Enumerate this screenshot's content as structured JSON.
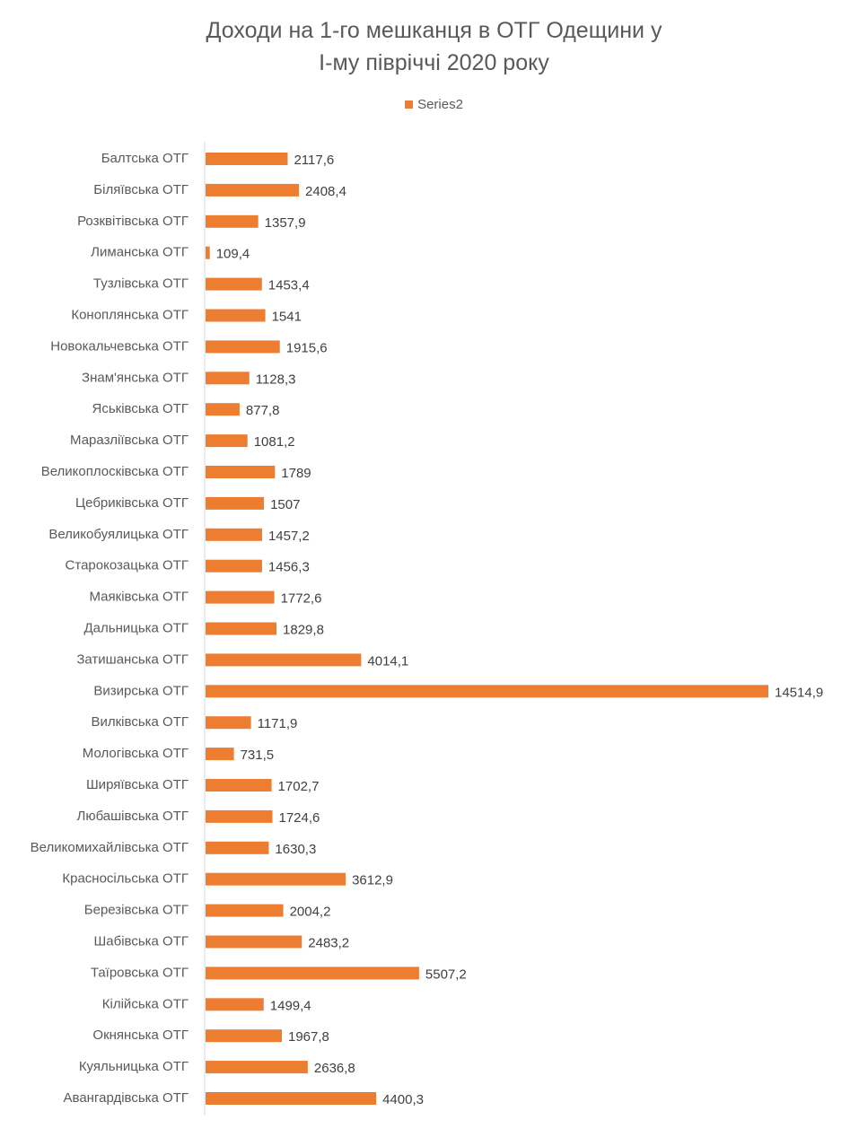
{
  "chart_data": {
    "type": "bar",
    "orientation": "horizontal",
    "title": "Доходи на 1-го мешканця в ОТГ Одещини у І-му півріччі 2020 року",
    "title_lines": [
      "Доходи на 1-го мешканця в ОТГ Одещини у",
      "І-му півріччі 2020 року"
    ],
    "legend_position": "top",
    "grid": false,
    "bar_color": "#ED7D31",
    "axis_color": "#D9D9D9",
    "text_color": "#595959",
    "xlim": [
      0,
      14514.9
    ],
    "categories": [
      "Балтська ОТГ",
      "Біляївська ОТГ",
      "Розквітівська ОТГ",
      "Лиманська ОТГ",
      "Тузлівська ОТГ",
      "Коноплянська ОТГ",
      "Новокальчевська ОТГ",
      "Знам'янська ОТГ",
      "Яськівська ОТГ",
      "Маразліївська ОТГ",
      "Великоплосківська ОТГ",
      "Цебриківська ОТГ",
      "Великобуялицька ОТГ",
      "Старокозацька ОТГ",
      "Маяківська ОТГ",
      "Дальницька ОТГ",
      "Затишанська ОТГ",
      "Визирська ОТГ",
      "Вилківська ОТГ",
      "Мологівська ОТГ",
      "Ширяївська  ОТГ",
      "Любашівська ОТГ",
      "Великомихайлівська ОТГ",
      "Красносільська  ОТГ",
      "Березівська ОТГ",
      "Шабівська ОТГ",
      "Таїровська ОТГ",
      "Кілійська ОТГ",
      "Окнянська ОТГ",
      "Куяльницька ОТГ",
      "Авангардівська ОТГ"
    ],
    "series": [
      {
        "name": "Series2",
        "values": [
          2117.6,
          2408.4,
          1357.9,
          109.4,
          1453.4,
          1541,
          1915.6,
          1128.3,
          877.8,
          1081.2,
          1789,
          1507,
          1457.2,
          1456.3,
          1772.6,
          1829.8,
          4014.1,
          14514.9,
          1171.9,
          731.5,
          1702.7,
          1724.6,
          1630.3,
          3612.9,
          2004.2,
          2483.2,
          5507.2,
          1499.4,
          1967.8,
          2636.8,
          4400.3
        ],
        "labels": [
          "2117,6",
          "2408,4",
          "1357,9",
          "109,4",
          "1453,4",
          "1541",
          "1915,6",
          "1128,3",
          "877,8",
          "1081,2",
          "1789",
          "1507",
          "1457,2",
          "1456,3",
          "1772,6",
          "1829,8",
          "4014,1",
          "14514,9",
          "1171,9",
          "731,5",
          "1702,7",
          "1724,6",
          "1630,3",
          "3612,9",
          "2004,2",
          "2483,2",
          "5507,2",
          "1499,4",
          "1967,8",
          "2636,8",
          "4400,3"
        ]
      }
    ]
  }
}
